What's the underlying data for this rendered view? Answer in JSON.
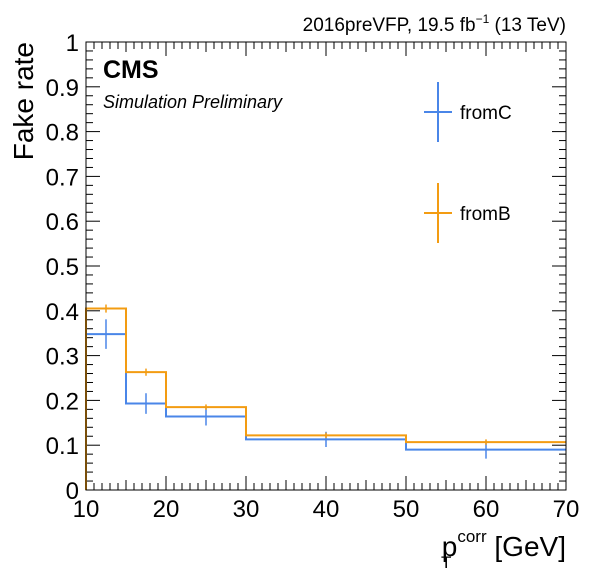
{
  "chart_data": {
    "type": "line",
    "drawstyle": "step-histogram-with-error-bars",
    "header": "2016preVFP, 19.5 fb",
    "header_sup": "−1",
    "header_tail": " (13 TeV)",
    "experiment": "CMS",
    "subtitle": "Simulation Preliminary",
    "ylabel": "Fake rate",
    "xlabel_main": "p",
    "xlabel_sub": "T",
    "xlabel_sup": "corr",
    "xlabel_unit": " [GeV]",
    "xlim": [
      10,
      70
    ],
    "ylim": [
      0,
      1
    ],
    "x_ticks": [
      "10",
      "20",
      "30",
      "40",
      "50",
      "60",
      "70"
    ],
    "y_ticks": [
      "0",
      "0.1",
      "0.2",
      "0.3",
      "0.4",
      "0.5",
      "0.6",
      "0.7",
      "0.8",
      "0.9",
      "1"
    ],
    "bin_edges": [
      10,
      15,
      20,
      30,
      50,
      70
    ],
    "grid": false,
    "legend_position": "top-right",
    "series": [
      {
        "name": "fromC",
        "color": "#4a86e8",
        "values": [
          0.348,
          0.193,
          0.164,
          0.113,
          0.09
        ],
        "errors": [
          0.033,
          0.023,
          0.02,
          0.017,
          0.02
        ]
      },
      {
        "name": "fromB",
        "color": "#f39c12",
        "values": [
          0.405,
          0.263,
          0.185,
          0.122,
          0.107
        ],
        "errors": [
          0.009,
          0.008,
          0.006,
          0.006,
          0.006
        ]
      }
    ]
  }
}
